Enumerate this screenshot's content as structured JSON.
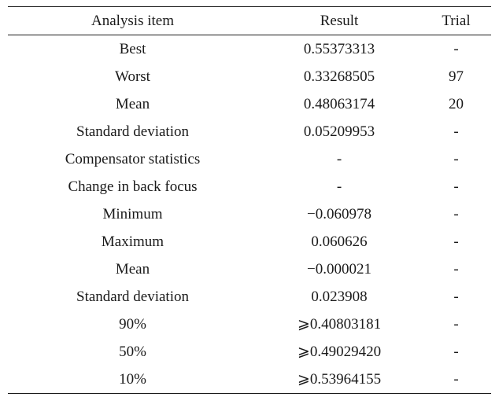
{
  "table": {
    "headers": {
      "item": "Analysis item",
      "result": "Result",
      "trial": "Trial"
    },
    "rows": [
      {
        "item": "Best",
        "result": "0.55373313",
        "trial": "-"
      },
      {
        "item": "Worst",
        "result": "0.33268505",
        "trial": "97"
      },
      {
        "item": "Mean",
        "result": "0.48063174",
        "trial": "20"
      },
      {
        "item": "Standard deviation",
        "result": "0.05209953",
        "trial": "-"
      },
      {
        "item": "Compensator statistics",
        "result": "-",
        "trial": "-"
      },
      {
        "item": "Change in back focus",
        "result": "-",
        "trial": "-"
      },
      {
        "item": "Minimum",
        "result": "−0.060978",
        "trial": "-"
      },
      {
        "item": "Maximum",
        "result": "0.060626",
        "trial": "-"
      },
      {
        "item": "Mean",
        "result": "−0.000021",
        "trial": "-"
      },
      {
        "item": "Standard deviation",
        "result": "0.023908",
        "trial": "-"
      },
      {
        "item": "90%",
        "result": "⩾0.40803181",
        "trial": "-"
      },
      {
        "item": "50%",
        "result": "⩾0.49029420",
        "trial": "-"
      },
      {
        "item": "10%",
        "result": "⩾0.53964155",
        "trial": "-"
      }
    ]
  }
}
